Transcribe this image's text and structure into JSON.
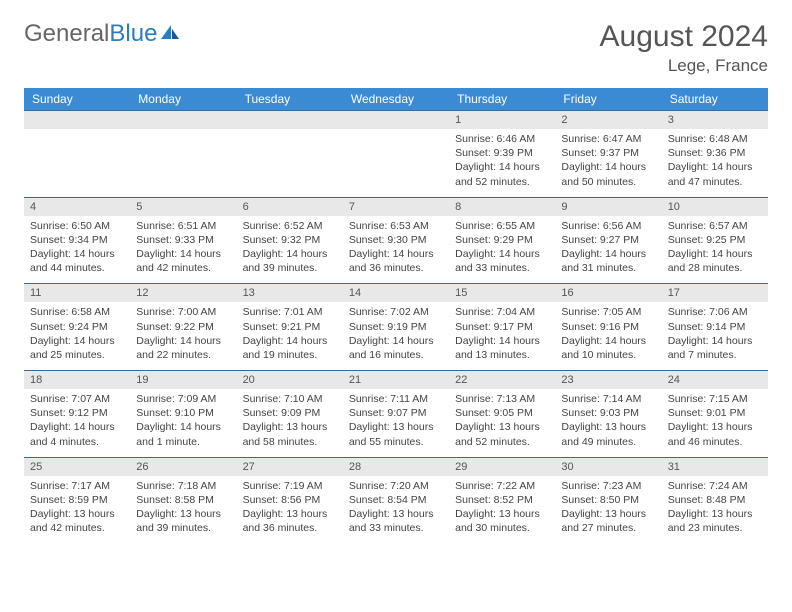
{
  "logo": {
    "text1": "General",
    "text2": "Blue"
  },
  "title": "August 2024",
  "location": "Lege, France",
  "colors": {
    "header_bg": "#3b8bd4",
    "header_text": "#ffffff",
    "num_row_bg": "#e8e8e8",
    "num_row_border": "#3b6a9c",
    "body_text": "#444444",
    "title_text": "#555555",
    "logo_gray": "#666666",
    "logo_blue": "#2b7cc4"
  },
  "day_names": [
    "Sunday",
    "Monday",
    "Tuesday",
    "Wednesday",
    "Thursday",
    "Friday",
    "Saturday"
  ],
  "weeks": [
    [
      {
        "n": "",
        "lines": []
      },
      {
        "n": "",
        "lines": []
      },
      {
        "n": "",
        "lines": []
      },
      {
        "n": "",
        "lines": []
      },
      {
        "n": "1",
        "lines": [
          "Sunrise: 6:46 AM",
          "Sunset: 9:39 PM",
          "Daylight: 14 hours and 52 minutes."
        ]
      },
      {
        "n": "2",
        "lines": [
          "Sunrise: 6:47 AM",
          "Sunset: 9:37 PM",
          "Daylight: 14 hours and 50 minutes."
        ]
      },
      {
        "n": "3",
        "lines": [
          "Sunrise: 6:48 AM",
          "Sunset: 9:36 PM",
          "Daylight: 14 hours and 47 minutes."
        ]
      }
    ],
    [
      {
        "n": "4",
        "lines": [
          "Sunrise: 6:50 AM",
          "Sunset: 9:34 PM",
          "Daylight: 14 hours and 44 minutes."
        ]
      },
      {
        "n": "5",
        "lines": [
          "Sunrise: 6:51 AM",
          "Sunset: 9:33 PM",
          "Daylight: 14 hours and 42 minutes."
        ]
      },
      {
        "n": "6",
        "lines": [
          "Sunrise: 6:52 AM",
          "Sunset: 9:32 PM",
          "Daylight: 14 hours and 39 minutes."
        ]
      },
      {
        "n": "7",
        "lines": [
          "Sunrise: 6:53 AM",
          "Sunset: 9:30 PM",
          "Daylight: 14 hours and 36 minutes."
        ]
      },
      {
        "n": "8",
        "lines": [
          "Sunrise: 6:55 AM",
          "Sunset: 9:29 PM",
          "Daylight: 14 hours and 33 minutes."
        ]
      },
      {
        "n": "9",
        "lines": [
          "Sunrise: 6:56 AM",
          "Sunset: 9:27 PM",
          "Daylight: 14 hours and 31 minutes."
        ]
      },
      {
        "n": "10",
        "lines": [
          "Sunrise: 6:57 AM",
          "Sunset: 9:25 PM",
          "Daylight: 14 hours and 28 minutes."
        ]
      }
    ],
    [
      {
        "n": "11",
        "lines": [
          "Sunrise: 6:58 AM",
          "Sunset: 9:24 PM",
          "Daylight: 14 hours and 25 minutes."
        ]
      },
      {
        "n": "12",
        "lines": [
          "Sunrise: 7:00 AM",
          "Sunset: 9:22 PM",
          "Daylight: 14 hours and 22 minutes."
        ]
      },
      {
        "n": "13",
        "lines": [
          "Sunrise: 7:01 AM",
          "Sunset: 9:21 PM",
          "Daylight: 14 hours and 19 minutes."
        ]
      },
      {
        "n": "14",
        "lines": [
          "Sunrise: 7:02 AM",
          "Sunset: 9:19 PM",
          "Daylight: 14 hours and 16 minutes."
        ]
      },
      {
        "n": "15",
        "lines": [
          "Sunrise: 7:04 AM",
          "Sunset: 9:17 PM",
          "Daylight: 14 hours and 13 minutes."
        ]
      },
      {
        "n": "16",
        "lines": [
          "Sunrise: 7:05 AM",
          "Sunset: 9:16 PM",
          "Daylight: 14 hours and 10 minutes."
        ]
      },
      {
        "n": "17",
        "lines": [
          "Sunrise: 7:06 AM",
          "Sunset: 9:14 PM",
          "Daylight: 14 hours and 7 minutes."
        ]
      }
    ],
    [
      {
        "n": "18",
        "lines": [
          "Sunrise: 7:07 AM",
          "Sunset: 9:12 PM",
          "Daylight: 14 hours and 4 minutes."
        ]
      },
      {
        "n": "19",
        "lines": [
          "Sunrise: 7:09 AM",
          "Sunset: 9:10 PM",
          "Daylight: 14 hours and 1 minute."
        ]
      },
      {
        "n": "20",
        "lines": [
          "Sunrise: 7:10 AM",
          "Sunset: 9:09 PM",
          "Daylight: 13 hours and 58 minutes."
        ]
      },
      {
        "n": "21",
        "lines": [
          "Sunrise: 7:11 AM",
          "Sunset: 9:07 PM",
          "Daylight: 13 hours and 55 minutes."
        ]
      },
      {
        "n": "22",
        "lines": [
          "Sunrise: 7:13 AM",
          "Sunset: 9:05 PM",
          "Daylight: 13 hours and 52 minutes."
        ]
      },
      {
        "n": "23",
        "lines": [
          "Sunrise: 7:14 AM",
          "Sunset: 9:03 PM",
          "Daylight: 13 hours and 49 minutes."
        ]
      },
      {
        "n": "24",
        "lines": [
          "Sunrise: 7:15 AM",
          "Sunset: 9:01 PM",
          "Daylight: 13 hours and 46 minutes."
        ]
      }
    ],
    [
      {
        "n": "25",
        "lines": [
          "Sunrise: 7:17 AM",
          "Sunset: 8:59 PM",
          "Daylight: 13 hours and 42 minutes."
        ]
      },
      {
        "n": "26",
        "lines": [
          "Sunrise: 7:18 AM",
          "Sunset: 8:58 PM",
          "Daylight: 13 hours and 39 minutes."
        ]
      },
      {
        "n": "27",
        "lines": [
          "Sunrise: 7:19 AM",
          "Sunset: 8:56 PM",
          "Daylight: 13 hours and 36 minutes."
        ]
      },
      {
        "n": "28",
        "lines": [
          "Sunrise: 7:20 AM",
          "Sunset: 8:54 PM",
          "Daylight: 13 hours and 33 minutes."
        ]
      },
      {
        "n": "29",
        "lines": [
          "Sunrise: 7:22 AM",
          "Sunset: 8:52 PM",
          "Daylight: 13 hours and 30 minutes."
        ]
      },
      {
        "n": "30",
        "lines": [
          "Sunrise: 7:23 AM",
          "Sunset: 8:50 PM",
          "Daylight: 13 hours and 27 minutes."
        ]
      },
      {
        "n": "31",
        "lines": [
          "Sunrise: 7:24 AM",
          "Sunset: 8:48 PM",
          "Daylight: 13 hours and 23 minutes."
        ]
      }
    ]
  ]
}
